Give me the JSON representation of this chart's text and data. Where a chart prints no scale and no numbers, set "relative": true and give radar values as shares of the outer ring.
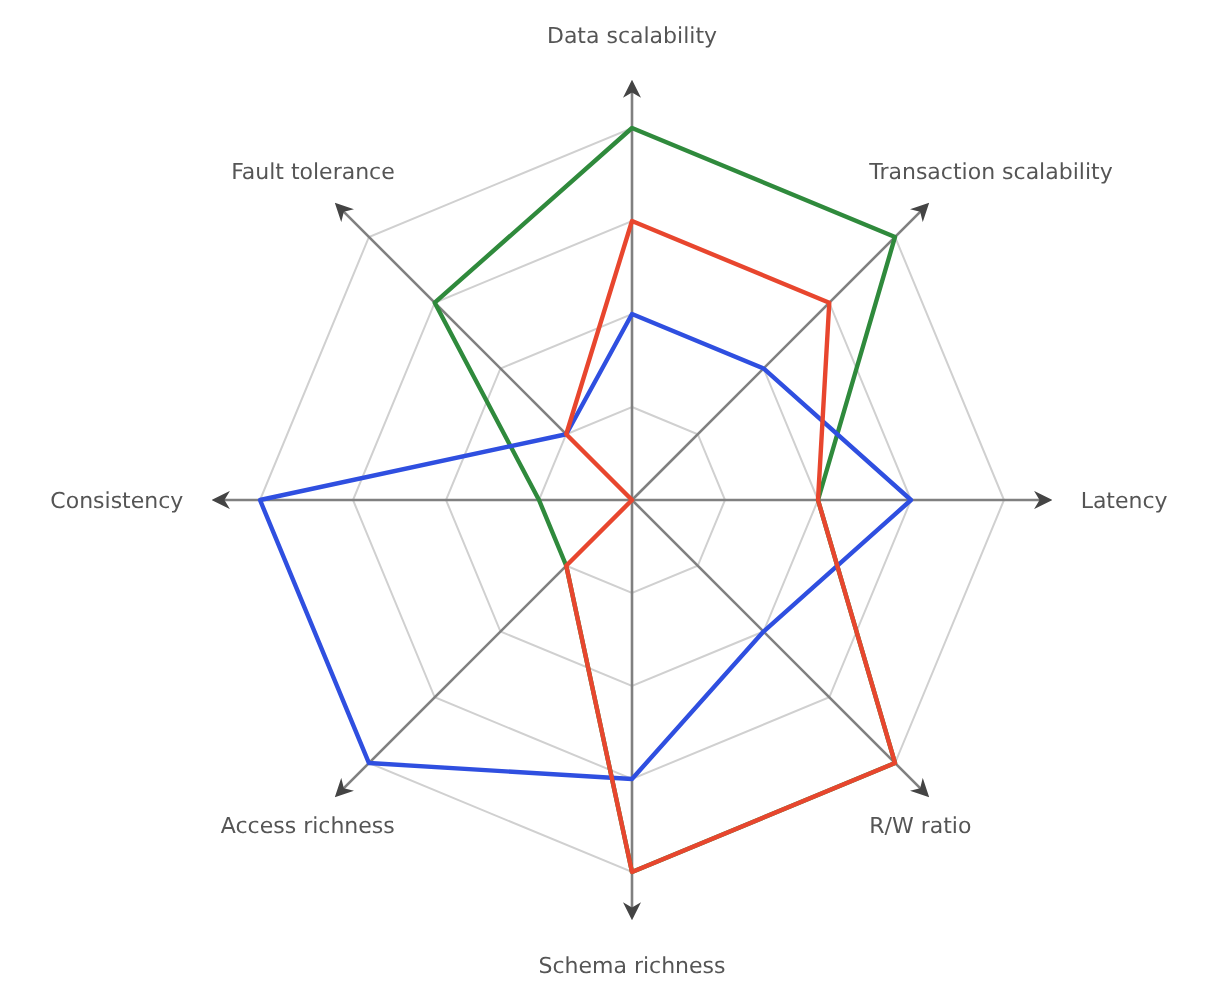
{
  "chart_data": {
    "type": "radar",
    "relative": true,
    "grid": true,
    "categories": [
      "Data scalability",
      "Transaction scalability",
      "Latency",
      "R/W ratio",
      "Schema richness",
      "Access richness",
      "Consistency",
      "Fault tolerance"
    ],
    "series": [
      {
        "color": "#2f8a3c",
        "values": [
          1,
          1,
          0.5,
          1,
          1,
          0.25,
          0.25,
          0.75
        ]
      },
      {
        "color": "#2f4fe0",
        "values": [
          0.5,
          0.5,
          0.75,
          0.5,
          0.75,
          1,
          1,
          0.25
        ]
      },
      {
        "color": "#e8462e",
        "values": [
          0.75,
          0.75,
          0.5,
          1,
          1,
          0.25,
          0,
          0.25
        ]
      }
    ]
  }
}
